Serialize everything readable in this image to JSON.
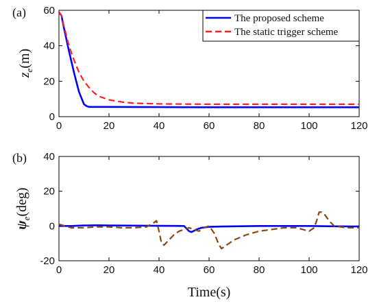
{
  "chart_data": [
    {
      "type": "line",
      "panel_label": "(a)",
      "ylabel_main": "z",
      "ylabel_sub": "e",
      "ylabel_unit": "(m)",
      "xlim": [
        0,
        120
      ],
      "ylim": [
        0,
        60
      ],
      "xticks": [
        "0",
        "20",
        "40",
        "60",
        "80",
        "100",
        "120"
      ],
      "yticks": [
        "0",
        "20",
        "40",
        "60"
      ],
      "grid": false,
      "legend_position": "top-right",
      "series": [
        {
          "name": "The proposed scheme",
          "color": "#0000ff",
          "style": "solid",
          "x": [
            0,
            1,
            2,
            4,
            6,
            8,
            10,
            11,
            12,
            14,
            20,
            40,
            60,
            80,
            100,
            120
          ],
          "y": [
            59,
            57,
            50,
            37,
            25,
            14,
            7,
            6,
            5.5,
            5.5,
            5.5,
            5.4,
            5.3,
            5.3,
            5.3,
            5.3
          ]
        },
        {
          "name": "The static trigger scheme",
          "color": "#ff2020",
          "style": "dashed",
          "x": [
            0,
            1,
            2,
            4,
            6,
            8,
            10,
            12,
            14,
            16,
            20,
            25,
            30,
            40,
            60,
            80,
            100,
            120
          ],
          "y": [
            59,
            57,
            51,
            40,
            32,
            25,
            20,
            16.5,
            13.5,
            11.5,
            9.5,
            8.3,
            7.6,
            7.2,
            7.0,
            7.0,
            7.0,
            7.0
          ]
        }
      ]
    },
    {
      "type": "line",
      "panel_label": "(b)",
      "ylabel_main": "ψ",
      "ylabel_sub": "e",
      "ylabel_unit": "(deg)",
      "xlabel": "Time(s)",
      "xlim": [
        0,
        120
      ],
      "ylim": [
        -20,
        40
      ],
      "xticks": [
        "0",
        "20",
        "40",
        "60",
        "80",
        "100",
        "120"
      ],
      "yticks": [
        "-20",
        "0",
        "20",
        "40"
      ],
      "grid": false,
      "series": [
        {
          "color": "#0000ff",
          "style": "solid",
          "x": [
            0,
            5,
            10,
            15,
            20,
            30,
            40,
            50,
            51,
            52,
            53,
            55,
            57,
            60,
            65,
            70,
            80,
            90,
            100,
            110,
            120
          ],
          "y": [
            0,
            0,
            0.3,
            0.4,
            0.3,
            0.2,
            0.1,
            0,
            -1.5,
            -3,
            -3.5,
            -2,
            -1,
            -0.5,
            -0.3,
            -0.2,
            0,
            0,
            0,
            -0.2,
            -0.3
          ]
        },
        {
          "color": "#8b4513",
          "style": "dashed",
          "x": [
            0,
            5,
            10,
            15,
            20,
            25,
            30,
            35,
            38,
            39,
            40,
            41,
            42,
            44,
            46,
            48,
            50,
            52,
            54,
            56,
            58,
            60,
            62,
            64,
            65,
            66,
            70,
            75,
            80,
            85,
            90,
            95,
            100,
            102,
            103,
            104,
            105,
            106,
            108,
            110,
            115,
            120
          ],
          "y": [
            1,
            -1,
            -1,
            -0.5,
            -0.5,
            -1,
            -1,
            -0.5,
            2,
            3,
            -3,
            -10,
            -11,
            -8,
            -5,
            -3,
            -2,
            -1,
            -2,
            -3,
            -1,
            0,
            -4,
            -11,
            -13,
            -12,
            -8,
            -5,
            -3,
            -2,
            -1,
            -1,
            -3,
            -1,
            3,
            8,
            8,
            7,
            3,
            0,
            -1,
            -1
          ]
        }
      ]
    }
  ]
}
